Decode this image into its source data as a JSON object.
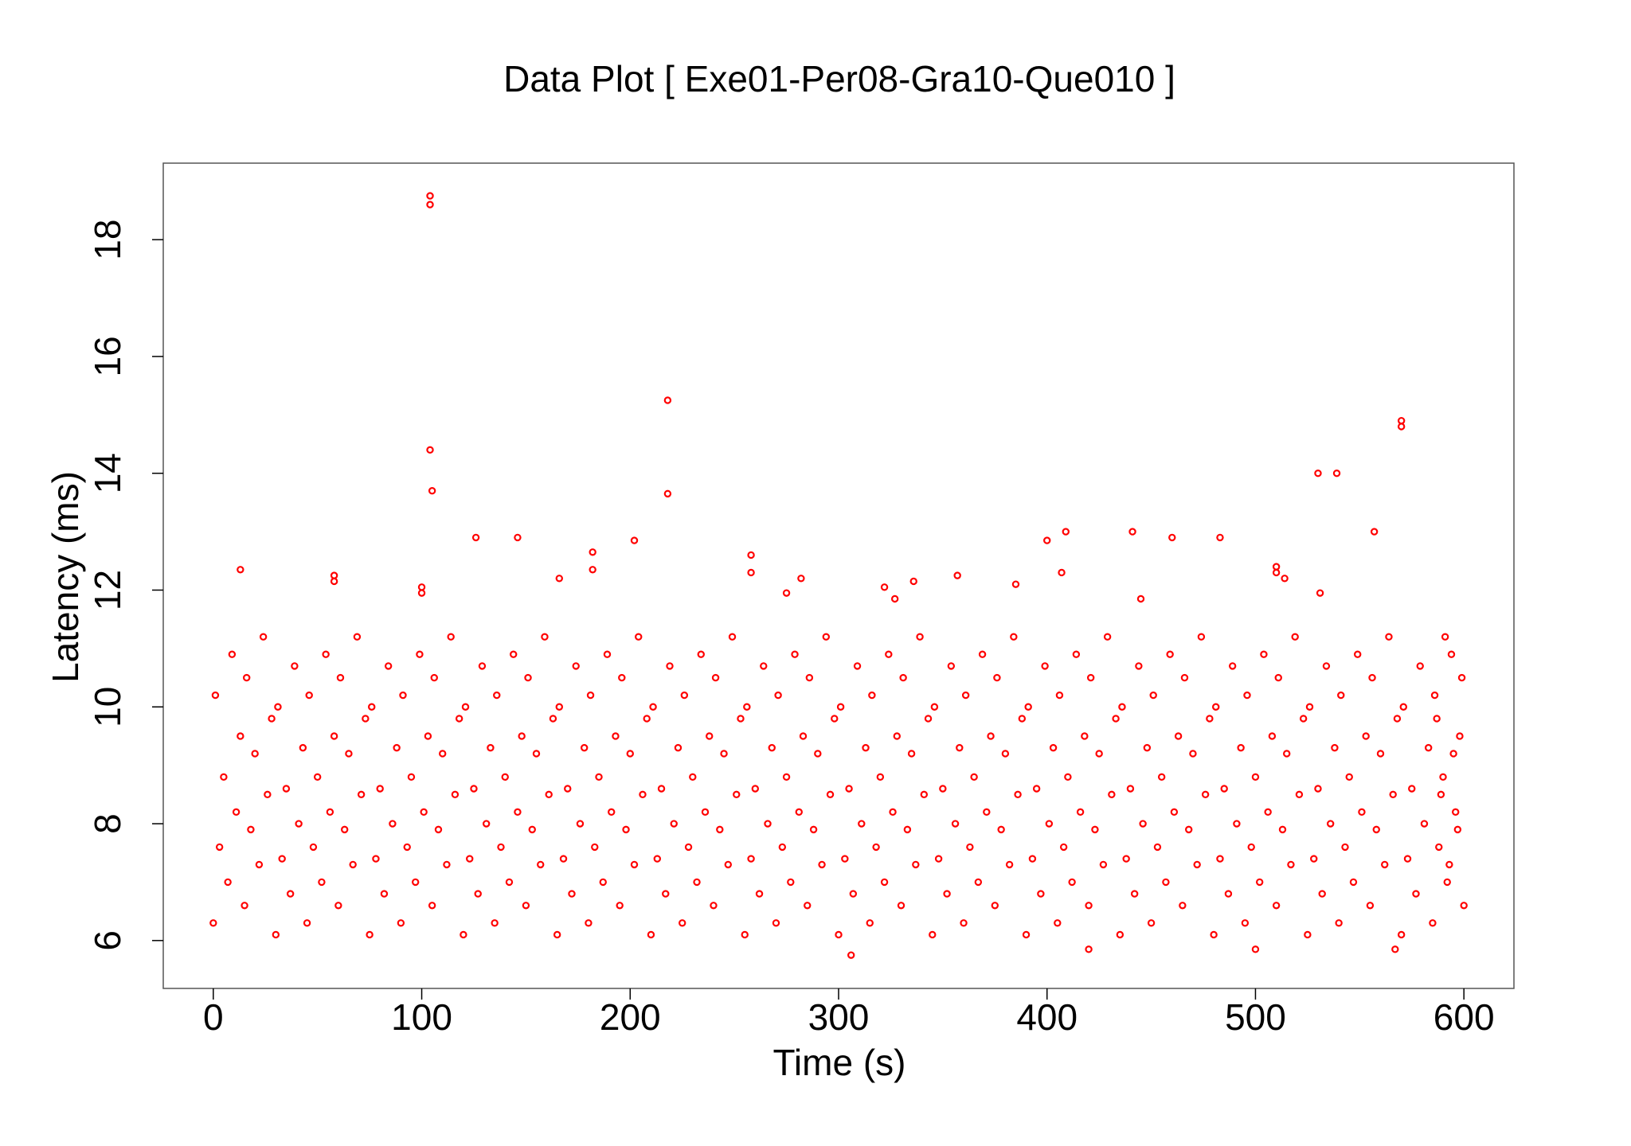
{
  "chart_data": {
    "type": "scatter",
    "title": "Data Plot [ Exe01-Per08-Gra10-Que010 ]",
    "x_label": "Time (s)",
    "y_label": "Latency (ms)",
    "color": "#ff0000",
    "xlim": [
      -24,
      624
    ],
    "ylim": [
      5.18,
      19.31
    ],
    "xticks": [
      0,
      100,
      200,
      300,
      400,
      500,
      600
    ],
    "yticks": [
      6,
      8,
      10,
      12,
      14,
      16,
      18
    ],
    "x": [
      0,
      7,
      3,
      11,
      5,
      13,
      1,
      9,
      15,
      22,
      18,
      26,
      20,
      28,
      16,
      24,
      30,
      37,
      33,
      41,
      35,
      43,
      31,
      39,
      45,
      52,
      48,
      56,
      50,
      58,
      46,
      54,
      60,
      67,
      63,
      71,
      65,
      73,
      61,
      69,
      75,
      82,
      78,
      86,
      80,
      88,
      76,
      84,
      90,
      97,
      93,
      101,
      95,
      103,
      91,
      99,
      105,
      112,
      108,
      116,
      110,
      118,
      106,
      114,
      120,
      127,
      123,
      131,
      125,
      133,
      121,
      129,
      135,
      142,
      138,
      146,
      140,
      148,
      136,
      144,
      150,
      157,
      153,
      161,
      155,
      163,
      151,
      159,
      165,
      172,
      168,
      176,
      170,
      178,
      166,
      174,
      180,
      187,
      183,
      191,
      185,
      193,
      181,
      189,
      195,
      202,
      198,
      206,
      200,
      208,
      196,
      204,
      210,
      217,
      213,
      221,
      215,
      223,
      211,
      219,
      225,
      232,
      228,
      236,
      230,
      238,
      226,
      234,
      240,
      247,
      243,
      251,
      245,
      253,
      241,
      249,
      255,
      262,
      258,
      266,
      260,
      268,
      256,
      264,
      270,
      277,
      273,
      281,
      275,
      283,
      271,
      279,
      285,
      292,
      288,
      296,
      290,
      298,
      286,
      294,
      300,
      307,
      303,
      311,
      305,
      313,
      301,
      309,
      315,
      322,
      318,
      326,
      320,
      328,
      316,
      324,
      330,
      337,
      333,
      341,
      335,
      343,
      331,
      339,
      345,
      352,
      348,
      356,
      350,
      358,
      346,
      354,
      360,
      367,
      363,
      371,
      365,
      373,
      361,
      369,
      375,
      382,
      378,
      386,
      380,
      388,
      376,
      384,
      390,
      397,
      393,
      401,
      395,
      403,
      391,
      399,
      405,
      412,
      408,
      416,
      410,
      418,
      406,
      414,
      420,
      427,
      423,
      431,
      425,
      433,
      421,
      429,
      435,
      442,
      438,
      446,
      440,
      448,
      436,
      444,
      450,
      457,
      453,
      461,
      455,
      463,
      451,
      459,
      465,
      472,
      468,
      476,
      470,
      478,
      466,
      474,
      480,
      487,
      483,
      491,
      485,
      493,
      481,
      489,
      495,
      502,
      498,
      506,
      500,
      508,
      496,
      504,
      510,
      517,
      513,
      521,
      515,
      523,
      511,
      519,
      525,
      532,
      528,
      536,
      530,
      538,
      526,
      534,
      540,
      547,
      543,
      551,
      545,
      553,
      541,
      549,
      555,
      562,
      558,
      566,
      560,
      568,
      556,
      564,
      570,
      577,
      573,
      581,
      575,
      583,
      571,
      579,
      585,
      592,
      588,
      596,
      590,
      598,
      586,
      594,
      600,
      593,
      597,
      589,
      595,
      587,
      599,
      591,
      104,
      104,
      104,
      105,
      218,
      218,
      570,
      570,
      530,
      539,
      557,
      441,
      409,
      400,
      126,
      146,
      202,
      460,
      483,
      182,
      182,
      258,
      258,
      13,
      58,
      58,
      100,
      100,
      166,
      282,
      275,
      322,
      327,
      336,
      357,
      385,
      407,
      510,
      510,
      514,
      531,
      445,
      306,
      420,
      500,
      567
    ],
    "values": [
      6.3,
      7.0,
      7.6,
      8.2,
      8.8,
      9.5,
      10.2,
      10.9,
      6.6,
      7.3,
      7.9,
      8.5,
      9.2,
      9.8,
      10.5,
      11.2,
      6.1,
      6.8,
      7.4,
      8.0,
      8.6,
      9.3,
      10.0,
      10.7,
      6.3,
      7.0,
      7.6,
      8.2,
      8.8,
      9.5,
      10.2,
      10.9,
      6.6,
      7.3,
      7.9,
      8.5,
      9.2,
      9.8,
      10.5,
      11.2,
      6.1,
      6.8,
      7.4,
      8.0,
      8.6,
      9.3,
      10.0,
      10.7,
      6.3,
      7.0,
      7.6,
      8.2,
      8.8,
      9.5,
      10.2,
      10.9,
      6.6,
      7.3,
      7.9,
      8.5,
      9.2,
      9.8,
      10.5,
      11.2,
      6.1,
      6.8,
      7.4,
      8.0,
      8.6,
      9.3,
      10.0,
      10.7,
      6.3,
      7.0,
      7.6,
      8.2,
      8.8,
      9.5,
      10.2,
      10.9,
      6.6,
      7.3,
      7.9,
      8.5,
      9.2,
      9.8,
      10.5,
      11.2,
      6.1,
      6.8,
      7.4,
      8.0,
      8.6,
      9.3,
      10.0,
      10.7,
      6.3,
      7.0,
      7.6,
      8.2,
      8.8,
      9.5,
      10.2,
      10.9,
      6.6,
      7.3,
      7.9,
      8.5,
      9.2,
      9.8,
      10.5,
      11.2,
      6.1,
      6.8,
      7.4,
      8.0,
      8.6,
      9.3,
      10.0,
      10.7,
      6.3,
      7.0,
      7.6,
      8.2,
      8.8,
      9.5,
      10.2,
      10.9,
      6.6,
      7.3,
      7.9,
      8.5,
      9.2,
      9.8,
      10.5,
      11.2,
      6.1,
      6.8,
      7.4,
      8.0,
      8.6,
      9.3,
      10.0,
      10.7,
      6.3,
      7.0,
      7.6,
      8.2,
      8.8,
      9.5,
      10.2,
      10.9,
      6.6,
      7.3,
      7.9,
      8.5,
      9.2,
      9.8,
      10.5,
      11.2,
      6.1,
      6.8,
      7.4,
      8.0,
      8.6,
      9.3,
      10.0,
      10.7,
      6.3,
      7.0,
      7.6,
      8.2,
      8.8,
      9.5,
      10.2,
      10.9,
      6.6,
      7.3,
      7.9,
      8.5,
      9.2,
      9.8,
      10.5,
      11.2,
      6.1,
      6.8,
      7.4,
      8.0,
      8.6,
      9.3,
      10.0,
      10.7,
      6.3,
      7.0,
      7.6,
      8.2,
      8.8,
      9.5,
      10.2,
      10.9,
      6.6,
      7.3,
      7.9,
      8.5,
      9.2,
      9.8,
      10.5,
      11.2,
      6.1,
      6.8,
      7.4,
      8.0,
      8.6,
      9.3,
      10.0,
      10.7,
      6.3,
      7.0,
      7.6,
      8.2,
      8.8,
      9.5,
      10.2,
      10.9,
      6.6,
      7.3,
      7.9,
      8.5,
      9.2,
      9.8,
      10.5,
      11.2,
      6.1,
      6.8,
      7.4,
      8.0,
      8.6,
      9.3,
      10.0,
      10.7,
      6.3,
      7.0,
      7.6,
      8.2,
      8.8,
      9.5,
      10.2,
      10.9,
      6.6,
      7.3,
      7.9,
      8.5,
      9.2,
      9.8,
      10.5,
      11.2,
      6.1,
      6.8,
      7.4,
      8.0,
      8.6,
      9.3,
      10.0,
      10.7,
      6.3,
      7.0,
      7.6,
      8.2,
      8.8,
      9.5,
      10.2,
      10.9,
      6.6,
      7.3,
      7.9,
      8.5,
      9.2,
      9.8,
      10.5,
      11.2,
      6.1,
      6.8,
      7.4,
      8.0,
      8.6,
      9.3,
      10.0,
      10.7,
      6.3,
      7.0,
      7.6,
      8.2,
      8.8,
      9.5,
      10.2,
      10.9,
      6.6,
      7.3,
      7.9,
      8.5,
      9.2,
      9.8,
      10.5,
      11.2,
      6.1,
      6.8,
      7.4,
      8.0,
      8.6,
      9.3,
      10.0,
      10.7,
      6.3,
      7.0,
      7.6,
      8.2,
      8.8,
      9.5,
      10.2,
      10.9,
      6.6,
      7.3,
      7.9,
      8.5,
      9.2,
      9.8,
      10.5,
      11.2,
      18.75,
      18.6,
      14.4,
      13.7,
      15.25,
      13.65,
      14.9,
      14.8,
      14.0,
      14.0,
      13.0,
      13.0,
      13.0,
      12.85,
      12.9,
      12.9,
      12.85,
      12.9,
      12.9,
      12.65,
      12.35,
      12.6,
      12.3,
      12.35,
      12.25,
      12.15,
      12.05,
      11.95,
      12.2,
      12.2,
      11.95,
      12.05,
      11.85,
      12.15,
      12.25,
      12.1,
      12.3,
      12.4,
      12.3,
      12.2,
      11.95,
      11.85,
      5.75,
      5.85,
      5.85,
      5.85
    ]
  }
}
